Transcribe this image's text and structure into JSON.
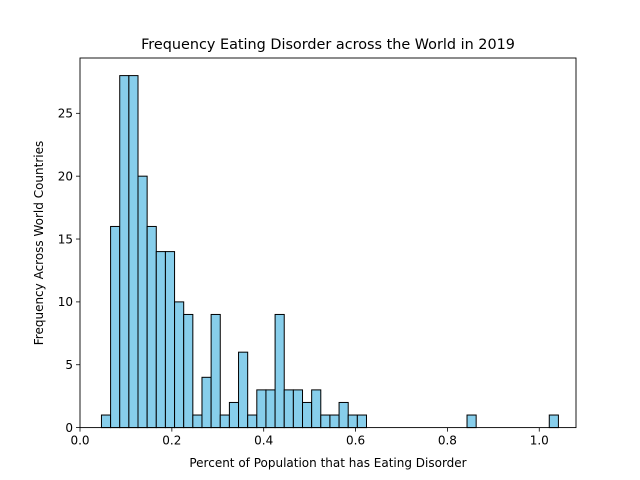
{
  "chart_data": {
    "type": "bar",
    "title": "Frequency Eating Disorder across the World in 2019",
    "xlabel": "Percent of Population that has Eating Disorder",
    "ylabel": "Frequency Across World Countries",
    "xlim": [
      0.0,
      1.08
    ],
    "ylim": [
      0,
      29.4
    ],
    "bin_width": 0.0199,
    "bin_start": 0.0467,
    "x_ticks": [
      "0.0",
      "0.2",
      "0.4",
      "0.6",
      "0.8",
      "1.0"
    ],
    "x_tick_values": [
      0.0,
      0.2,
      0.4,
      0.6,
      0.8,
      1.0
    ],
    "y_ticks": [
      "0",
      "5",
      "10",
      "15",
      "20",
      "25"
    ],
    "y_tick_values": [
      0,
      5,
      10,
      15,
      20,
      25
    ],
    "values": [
      1,
      16,
      28,
      28,
      20,
      16,
      14,
      14,
      10,
      9,
      1,
      4,
      9,
      1,
      2,
      6,
      1,
      3,
      3,
      9,
      3,
      3,
      2,
      3,
      1,
      1,
      2,
      1,
      1,
      0,
      0,
      0,
      0,
      0,
      0,
      0,
      0,
      0,
      0,
      0,
      1,
      0,
      0,
      0,
      0,
      0,
      0,
      0,
      0,
      1
    ],
    "bar_color": "#87ceeb",
    "edge_color": "#000000",
    "grid": false,
    "legend": "none"
  }
}
